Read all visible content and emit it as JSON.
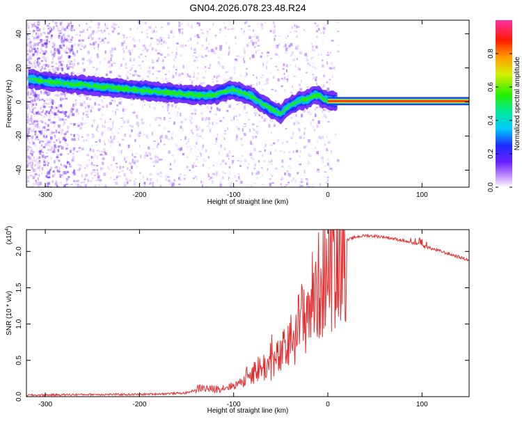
{
  "title": "GN04.2026.078.23.48.R24",
  "chart_data": [
    {
      "type": "heatmap",
      "xlabel": "Height of straight line (km)",
      "ylabel": "Frequency (Hz)",
      "xlim": [
        -320,
        150
      ],
      "ylim": [
        -50,
        48
      ],
      "xticks": [
        -300,
        -200,
        -100,
        0,
        100
      ],
      "yticks": [
        -40,
        -20,
        0,
        20,
        40
      ],
      "ridge": {
        "x": [
          -320,
          -300,
          -280,
          -260,
          -240,
          -220,
          -200,
          -180,
          -160,
          -140,
          -120,
          -110,
          -100,
          -90,
          -80,
          -70,
          -60,
          -50,
          -45,
          -40,
          -35,
          -30,
          -25,
          -20,
          -15,
          -10,
          -5,
          0,
          10,
          150
        ],
        "y": [
          14,
          12,
          11,
          10,
          9,
          8,
          7,
          6,
          5,
          4,
          4,
          6,
          7,
          5,
          3,
          -1,
          -4,
          -7,
          -4,
          -2,
          -1,
          1,
          1,
          2,
          4,
          4,
          2,
          1,
          0.5,
          0.5
        ]
      },
      "colorbar": {
        "label": "Normalized spectral amplitude",
        "range": [
          0,
          1
        ],
        "ticks": [
          0.0,
          0.2,
          0.4,
          0.6,
          0.8
        ]
      }
    },
    {
      "type": "line",
      "xlabel": "Height of straight line (km)",
      "ylabel": "SNR (10 * v/v)",
      "multiplier": "(x10",
      "multiplier_exp": "4",
      "multiplier_close": ")",
      "xlim": [
        -320,
        150
      ],
      "ylim": [
        0,
        2.3
      ],
      "xticks": [
        -300,
        -200,
        -100,
        0,
        100
      ],
      "yticks": [
        0.0,
        0.5,
        1.0,
        1.5,
        2.0
      ],
      "series": [
        {
          "name": "SNR",
          "color": "#e8292b",
          "x": [
            -320,
            -250,
            -200,
            -150,
            -135,
            -120,
            -100,
            -90,
            -80,
            -70,
            -60,
            -50,
            -40,
            -30,
            -20,
            -10,
            0,
            10,
            20,
            30,
            40,
            50,
            60,
            80,
            100,
            120,
            150
          ],
          "y": [
            0.02,
            0.03,
            0.03,
            0.05,
            0.12,
            0.1,
            0.15,
            0.22,
            0.35,
            0.4,
            0.45,
            0.55,
            0.75,
            1.0,
            1.25,
            1.5,
            1.75,
            2.0,
            2.15,
            2.2,
            2.22,
            2.21,
            2.2,
            2.15,
            2.08,
            2.0,
            1.88
          ]
        }
      ]
    }
  ]
}
